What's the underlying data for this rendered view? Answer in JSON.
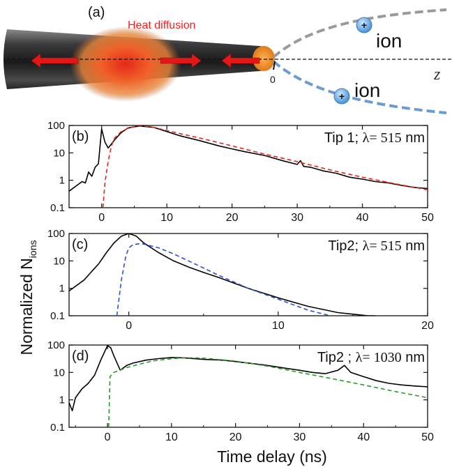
{
  "schematic": {
    "panel_label": "(a)",
    "heat_label": "Heat diffusion",
    "ion_label_top": "ion",
    "ion_label_bottom": "ion",
    "ion_sign": "+",
    "axis_label": "z",
    "origin_label": "0",
    "colors": {
      "heat": "#ff1a1a",
      "ion": "#4f97d9",
      "trajectory_top": "#9a9a9a",
      "trajectory_bottom": "#6b9cd0"
    }
  },
  "shared_axes": {
    "ylabel_main": "Normalized N",
    "ylabel_sub": "ions",
    "xlabel": "Time delay (ns)"
  },
  "chart_data": [
    {
      "type": "line",
      "panel_label": "(b)",
      "annotation_text": "Tip 1; ",
      "annotation_lambda": "λ= 515",
      "annotation_unit": " nm",
      "xlim": [
        -5,
        50
      ],
      "ylim": [
        0.1,
        100
      ],
      "yscale": "log",
      "xticks": [
        0,
        10,
        20,
        30,
        40,
        50
      ],
      "yticks": [
        0.1,
        1,
        10,
        100
      ],
      "yticklabels": [
        "0.1",
        "1",
        "10",
        "100"
      ],
      "series": [
        {
          "style": "solid",
          "color": "#000000",
          "x": [
            -5,
            -4,
            -3,
            -2.5,
            -2,
            -1.5,
            -1,
            -0.5,
            0,
            0.5,
            1,
            2,
            3,
            4,
            5,
            6,
            7,
            8,
            10,
            12,
            15,
            18,
            20,
            22,
            25,
            28,
            30,
            30.5,
            31,
            32,
            34,
            36,
            38,
            40,
            42,
            44,
            46,
            48,
            50
          ],
          "y": [
            0.4,
            0.6,
            0.9,
            0.8,
            2,
            1.4,
            3,
            4,
            75,
            25,
            15,
            30,
            55,
            80,
            90,
            95,
            90,
            85,
            60,
            42,
            28,
            18,
            14,
            11,
            8,
            5,
            3.8,
            5.2,
            3.2,
            3,
            2.2,
            1.8,
            1.3,
            1.1,
            0.9,
            0.8,
            0.65,
            0.55,
            0.5
          ]
        },
        {
          "style": "dashed",
          "color": "#e8241b",
          "x": [
            0.2,
            0.5,
            1,
            1.5,
            2,
            3,
            4,
            5,
            6,
            7,
            8,
            10,
            15,
            20,
            25,
            30,
            35,
            40,
            45,
            50
          ],
          "y": [
            0.1,
            0.8,
            5,
            18,
            35,
            60,
            78,
            90,
            95,
            92,
            85,
            65,
            35,
            18,
            9,
            4.8,
            2.4,
            1.3,
            0.75,
            0.45
          ]
        }
      ]
    },
    {
      "type": "line",
      "panel_label": "(c)",
      "annotation_text": "Tip2; ",
      "annotation_lambda": "λ= 515",
      "annotation_unit": " nm",
      "xlim": [
        -4,
        20
      ],
      "ylim": [
        0.1,
        100
      ],
      "yscale": "log",
      "xticks": [
        0,
        10,
        20
      ],
      "yticks": [
        0.1,
        1,
        10,
        100
      ],
      "yticklabels": [
        "0.1",
        "1",
        "10",
        "100"
      ],
      "series": [
        {
          "style": "solid",
          "color": "#000000",
          "x": [
            -4,
            -3,
            -2,
            -1.5,
            -1,
            -0.5,
            0,
            0.5,
            1,
            2,
            3,
            4,
            5,
            6,
            8,
            10,
            12,
            14,
            16,
            16.5
          ],
          "y": [
            0.8,
            2,
            8,
            20,
            45,
            80,
            100,
            80,
            45,
            20,
            10,
            6,
            3.8,
            2.5,
            1,
            0.45,
            0.22,
            0.13,
            0.1,
            0.1
          ]
        },
        {
          "style": "dashed",
          "color": "#2b4fd8",
          "x": [
            -0.8,
            -0.5,
            -0.2,
            0,
            0.3,
            0.7,
            1,
            2,
            3,
            4,
            5,
            6,
            8,
            10,
            12,
            13.5
          ],
          "y": [
            0.1,
            2,
            15,
            30,
            40,
            42,
            41,
            30,
            18,
            10,
            5.5,
            3,
            1,
            0.4,
            0.16,
            0.1
          ]
        }
      ]
    },
    {
      "type": "line",
      "panel_label": "(d)",
      "annotation_text": "Tip2 ; ",
      "annotation_lambda": "λ= 1030",
      "annotation_unit": " nm",
      "xlim": [
        -6,
        50
      ],
      "ylim": [
        0.1,
        100
      ],
      "yscale": "log",
      "xticks": [
        0,
        10,
        20,
        30,
        40,
        50
      ],
      "yticks": [
        0.1,
        1,
        10,
        100
      ],
      "yticklabels": [
        "0.1",
        "1",
        "10",
        "100"
      ],
      "series": [
        {
          "style": "solid",
          "color": "#000000",
          "x": [
            -6,
            -5.5,
            -5,
            -4,
            -3,
            -2,
            -1,
            0,
            0.5,
            1,
            2,
            3,
            4,
            6,
            8,
            10,
            12,
            15,
            18,
            20,
            22,
            25,
            28,
            30,
            32,
            34,
            36,
            37,
            38,
            40,
            42,
            44,
            46,
            48,
            50
          ],
          "y": [
            0.8,
            0.4,
            1.2,
            2.5,
            4,
            8,
            30,
            95,
            80,
            40,
            12,
            18,
            22,
            28,
            32,
            35,
            34,
            30,
            28,
            25,
            22,
            18,
            14,
            12,
            10,
            9,
            12,
            18,
            10,
            7,
            5,
            4,
            3.5,
            3.2,
            3
          ]
        },
        {
          "style": "dashed",
          "color": "#2a9a2a",
          "x": [
            0.2,
            0.4,
            1,
            3,
            5,
            7,
            9,
            11,
            13,
            15,
            20,
            25,
            30,
            35,
            40,
            45,
            50
          ],
          "y": [
            0.1,
            7,
            10,
            15,
            20,
            26,
            30,
            33,
            34,
            33,
            26,
            17,
            10,
            6,
            3.5,
            2,
            1.2
          ]
        }
      ]
    }
  ]
}
